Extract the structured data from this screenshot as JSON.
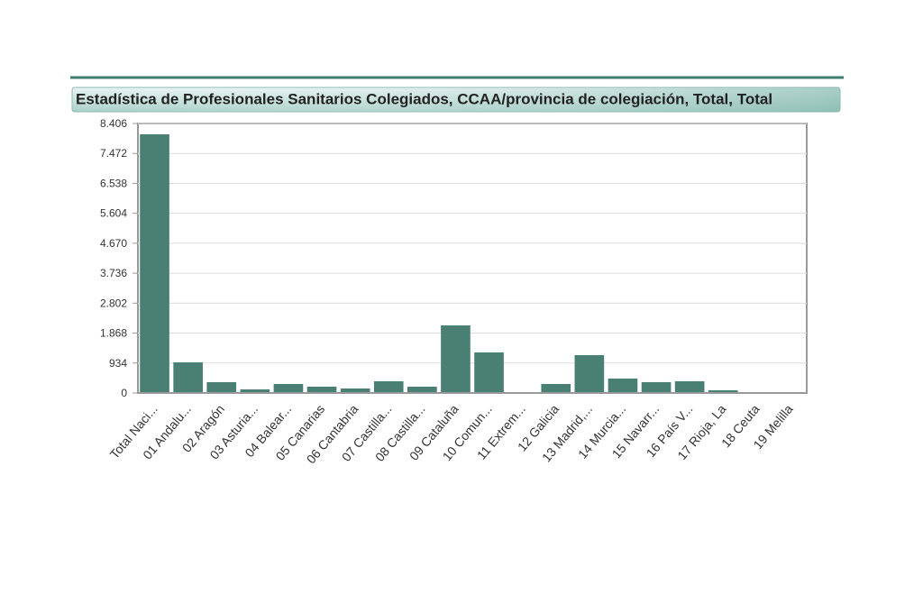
{
  "chart_data": {
    "type": "bar",
    "title": "Estadística de Profesionales Sanitarios Colegiados, CCAA/provincia de colegiación, Total, Total",
    "categories": [
      "Total Naci...",
      "01 Andalu...",
      "02 Aragón",
      "03 Asturia...",
      "04 Balear...",
      "05 Canarias",
      "06 Cantabria",
      "07 Castilla...",
      "08 Castilla...",
      "09 Cataluña",
      "10 Comun...",
      "11 Extrem...",
      "12 Galicia",
      "13 Madrid,...",
      "14 Murcia...",
      "15 Navarr...",
      "16 País V...",
      "17 Rioja, La",
      "18 Ceuta",
      "19 Melilla"
    ],
    "values": [
      8069,
      956,
      337,
      112,
      281,
      197,
      140,
      365,
      197,
      2108,
      1265,
      20,
      281,
      1181,
      450,
      337,
      365,
      84,
      28,
      28
    ],
    "color": "#4a7f74",
    "ylim": [
      0,
      8406
    ],
    "yticks": [
      0,
      934,
      {
        "value": 1868,
        "label": "1.868"
      },
      {
        "value": 2802,
        "label": "2.802"
      },
      {
        "value": 3736,
        "label": "3.736"
      },
      {
        "value": 4670,
        "label": "4.670"
      },
      {
        "value": 5604,
        "label": "5.604"
      },
      {
        "value": 6538,
        "label": "6.538"
      },
      {
        "value": 7472,
        "label": "7.472"
      },
      {
        "value": 8406,
        "label": "8.406"
      }
    ],
    "grid": true
  }
}
